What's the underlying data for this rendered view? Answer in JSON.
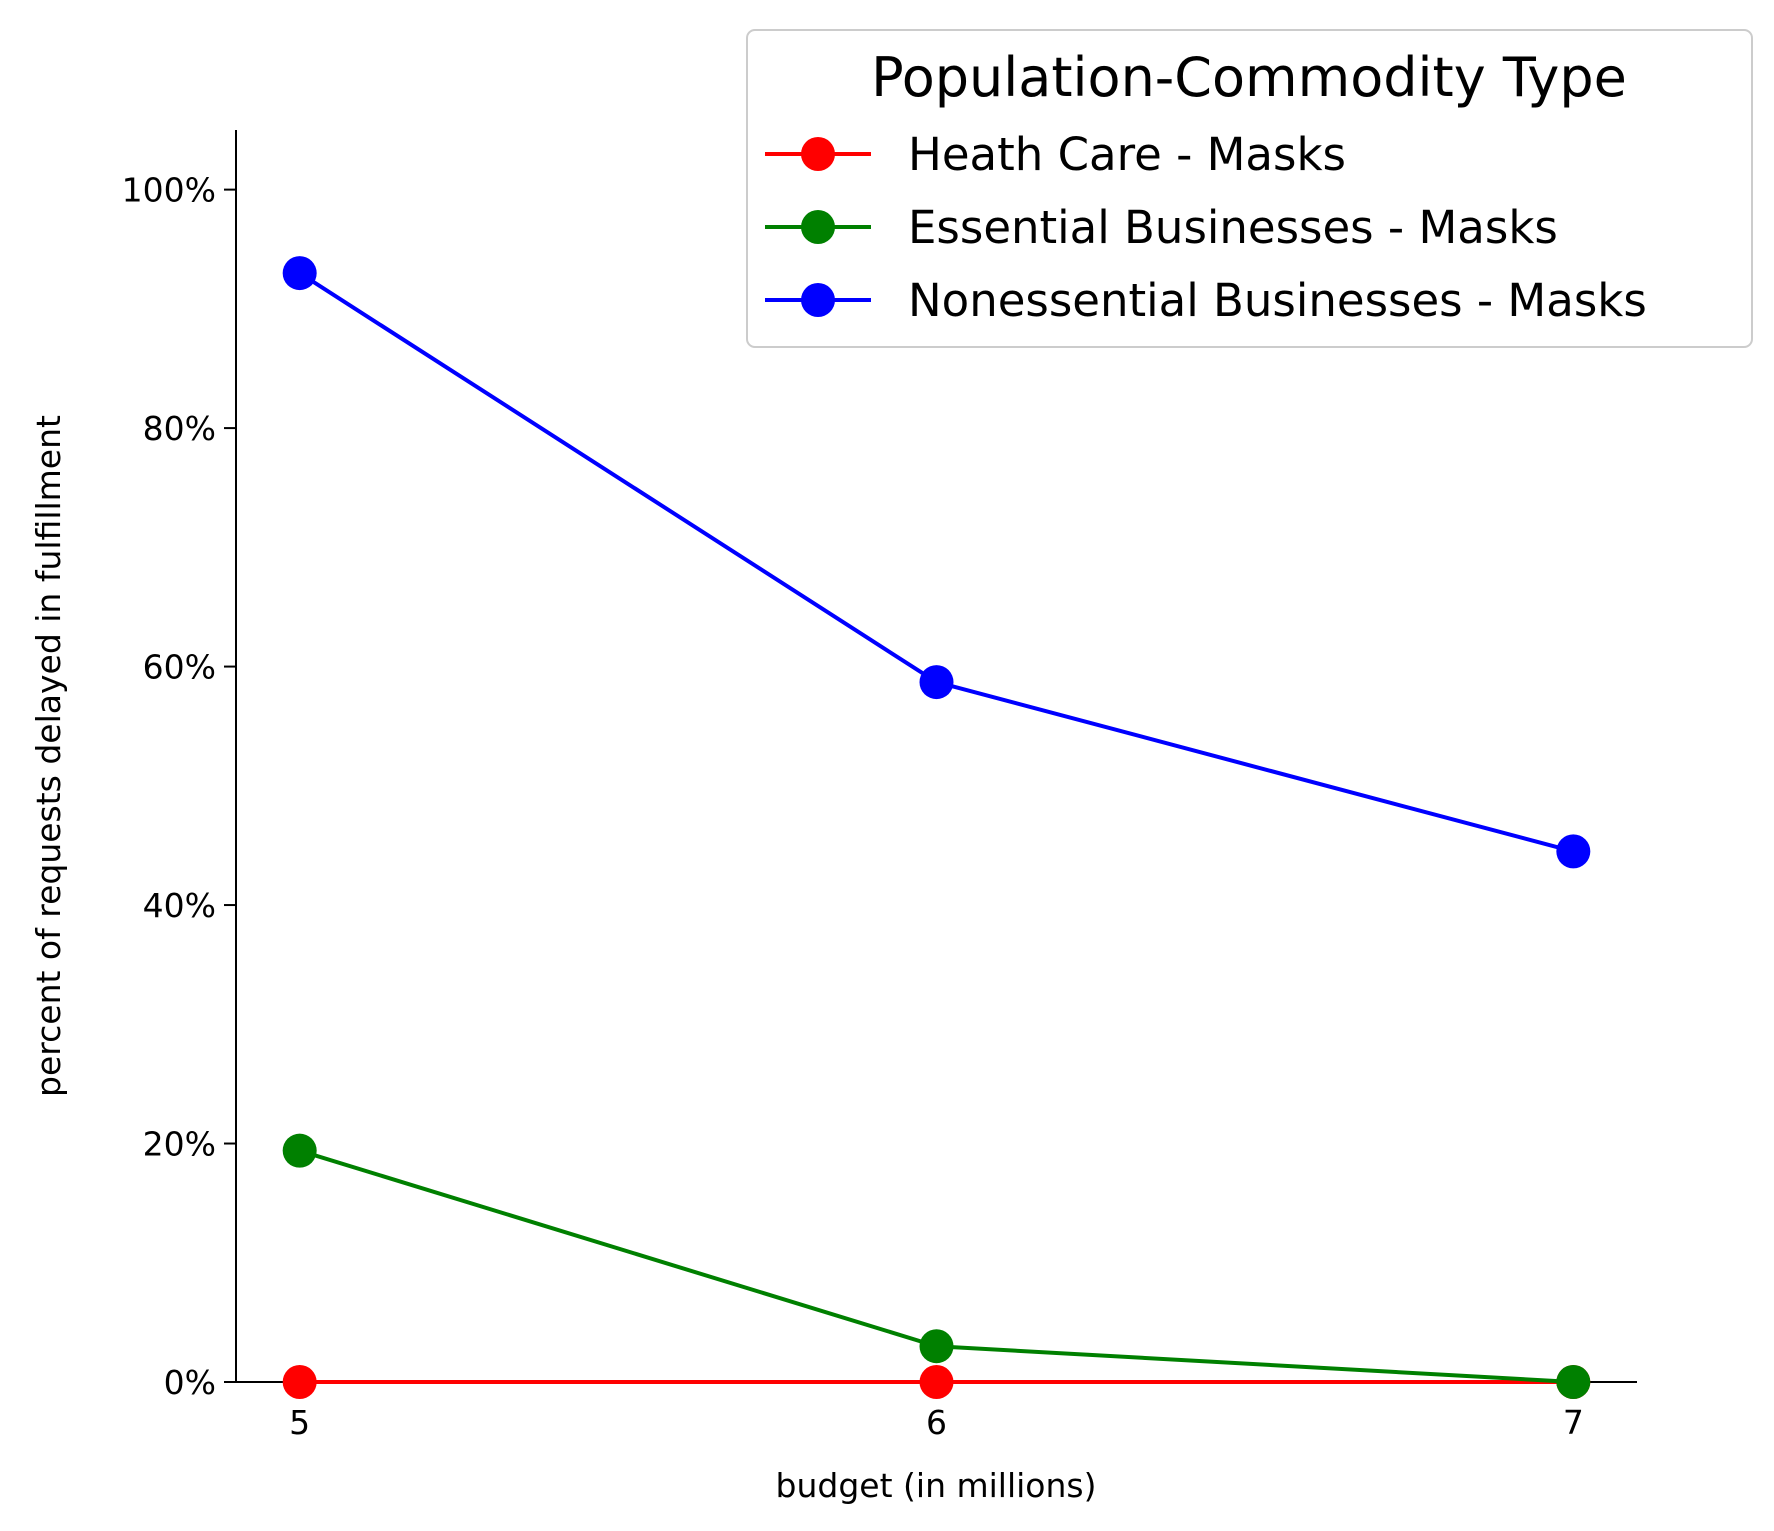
{
  "chart_data": {
    "type": "line",
    "x": [
      5,
      6,
      7
    ],
    "xticks": [
      "5",
      "6",
      "7"
    ],
    "yticks": [
      "0%",
      "20%",
      "40%",
      "60%",
      "80%",
      "100%"
    ],
    "ytick_values": [
      0,
      20,
      40,
      60,
      80,
      100
    ],
    "xlabel": "budget (in millions)",
    "ylabel": "percent of requests delayed in fulfillment",
    "xlim": [
      4.9,
      7.1
    ],
    "ylim": [
      0,
      105
    ],
    "grid": false,
    "legend": {
      "title": "Population-Commodity Type",
      "placement": "top-right"
    },
    "series": [
      {
        "name": "Heath Care - Masks",
        "color": "#ff0000",
        "values": [
          0,
          0,
          0
        ]
      },
      {
        "name": "Essential Businesses - Masks",
        "color": "#008000",
        "values": [
          19.4,
          3.0,
          0
        ]
      },
      {
        "name": "Nonessential Businesses - Masks",
        "color": "#0000ff",
        "values": [
          93.0,
          58.7,
          44.5
        ]
      }
    ]
  }
}
